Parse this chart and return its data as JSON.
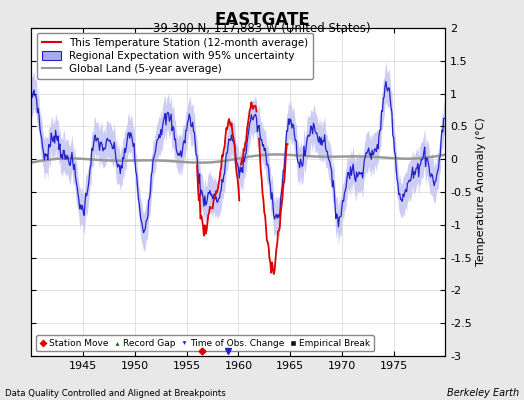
{
  "title": "EASTGATE",
  "subtitle": "39.300 N, 117.883 W (United States)",
  "ylabel": "Temperature Anomaly (°C)",
  "xlabel_note": "Data Quality Controlled and Aligned at Breakpoints",
  "credit": "Berkeley Earth",
  "xlim": [
    1940,
    1980
  ],
  "ylim": [
    -3,
    2
  ],
  "yticks": [
    -3,
    -2.5,
    -2,
    -1.5,
    -1,
    -0.5,
    0,
    0.5,
    1,
    1.5,
    2
  ],
  "xticks": [
    1945,
    1950,
    1955,
    1960,
    1965,
    1970,
    1975
  ],
  "bg_color": "#e8e8e8",
  "plot_bg_color": "#ffffff",
  "regional_color": "#2222cc",
  "regional_fill_color": "#aaaaee",
  "station_color": "#dd0000",
  "global_color": "#999999",
  "title_fontsize": 12,
  "subtitle_fontsize": 8.5,
  "legend_fontsize": 7.5
}
